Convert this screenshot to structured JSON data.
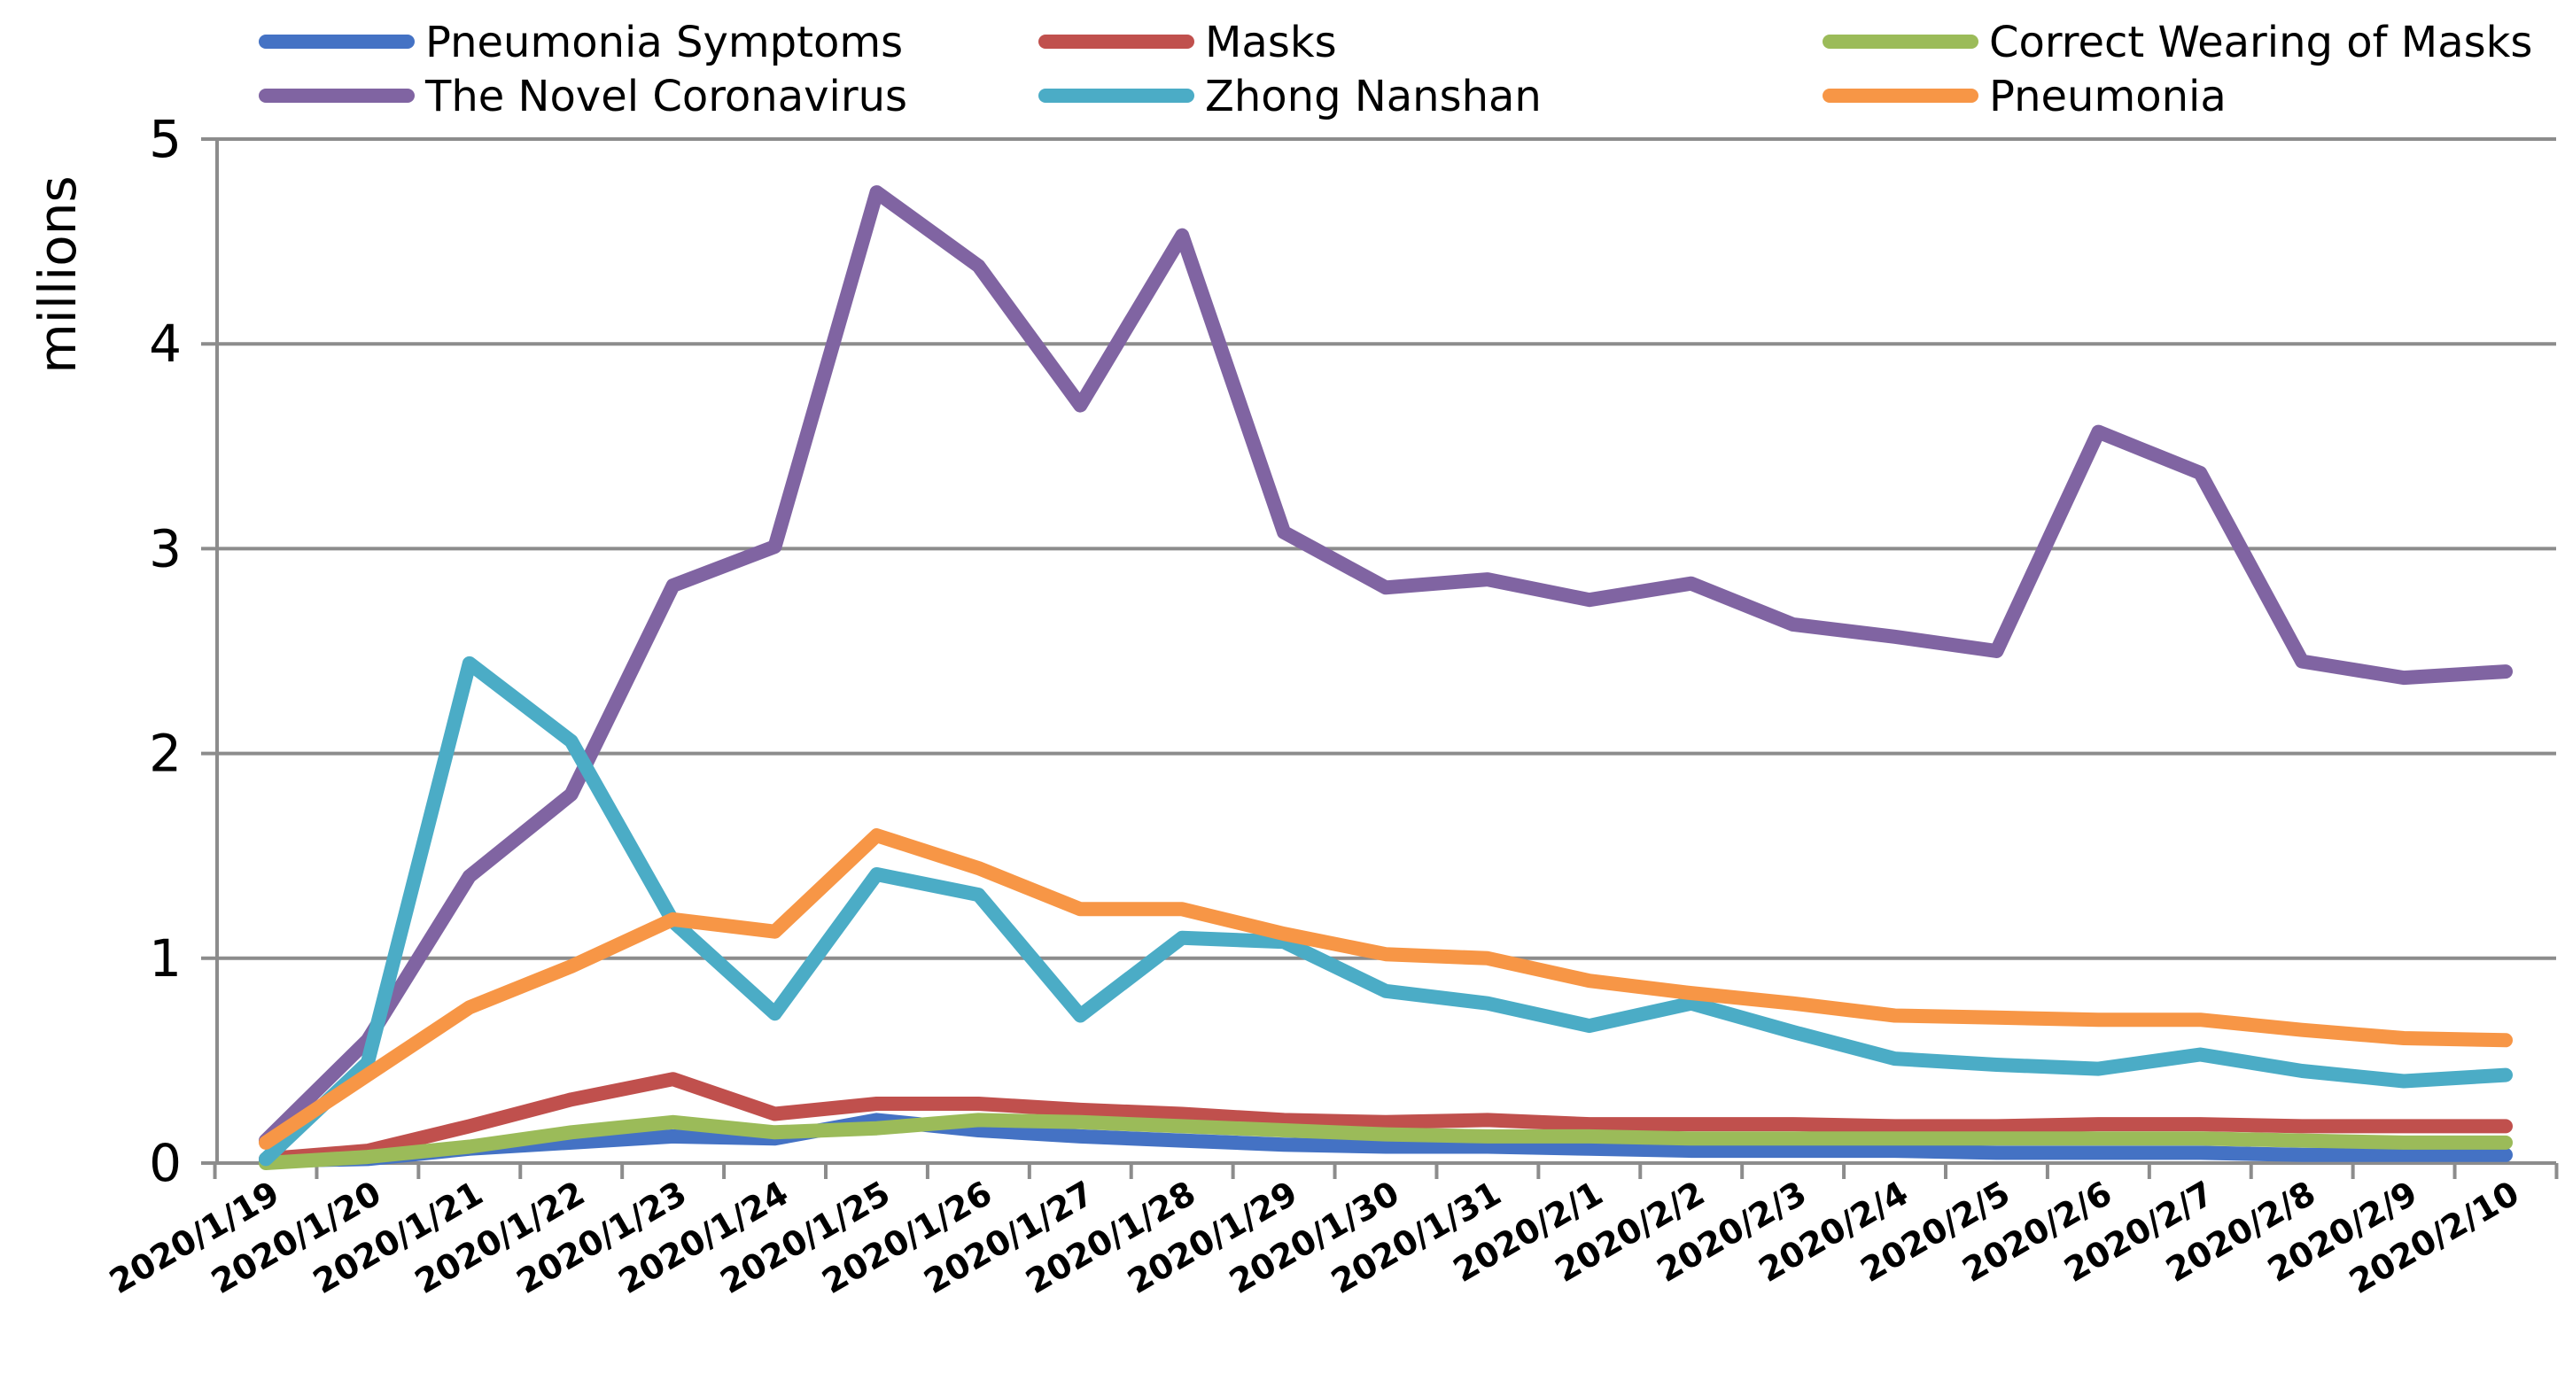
{
  "chart_data": {
    "type": "line",
    "title": "",
    "xlabel": "",
    "ylabel": "millions",
    "ylim": [
      0,
      5
    ],
    "yticks": [
      0,
      1,
      2,
      3,
      4,
      5
    ],
    "grid": true,
    "legend_position": "top",
    "categories": [
      "2020/1/19",
      "2020/1/20",
      "2020/1/21",
      "2020/1/22",
      "2020/1/23",
      "2020/1/24",
      "2020/1/25",
      "2020/1/26",
      "2020/1/27",
      "2020/1/28",
      "2020/1/29",
      "2020/1/30",
      "2020/1/31",
      "2020/2/1",
      "2020/2/2",
      "2020/2/3",
      "2020/2/4",
      "2020/2/5",
      "2020/2/6",
      "2020/2/7",
      "2020/2/8",
      "2020/2/9",
      "2020/2/10"
    ],
    "series": [
      {
        "name": "Pneumonia Symptoms",
        "color": "#4472C4",
        "values": [
          0.01,
          0.02,
          0.07,
          0.1,
          0.13,
          0.12,
          0.21,
          0.16,
          0.13,
          0.11,
          0.09,
          0.08,
          0.08,
          0.07,
          0.06,
          0.06,
          0.06,
          0.05,
          0.05,
          0.05,
          0.04,
          0.04,
          0.04
        ]
      },
      {
        "name": "Masks",
        "color": "#C0504D",
        "values": [
          0.02,
          0.06,
          0.18,
          0.31,
          0.41,
          0.24,
          0.29,
          0.29,
          0.26,
          0.24,
          0.21,
          0.2,
          0.21,
          0.19,
          0.19,
          0.19,
          0.18,
          0.18,
          0.19,
          0.19,
          0.18,
          0.18,
          0.18
        ]
      },
      {
        "name": "Correct Wearing of Masks",
        "color": "#9BBB59",
        "values": [
          0.0,
          0.03,
          0.08,
          0.15,
          0.2,
          0.15,
          0.17,
          0.21,
          0.2,
          0.18,
          0.16,
          0.14,
          0.13,
          0.13,
          0.12,
          0.12,
          0.12,
          0.12,
          0.12,
          0.12,
          0.11,
          0.1,
          0.1
        ]
      },
      {
        "name": "The Novel Coronavirus",
        "color": "#8064A2",
        "values": [
          0.11,
          0.6,
          1.4,
          1.8,
          2.82,
          3.01,
          4.74,
          4.38,
          3.7,
          4.53,
          3.08,
          2.81,
          2.85,
          2.75,
          2.83,
          2.63,
          2.57,
          2.5,
          3.57,
          3.37,
          2.45,
          2.37,
          2.4
        ]
      },
      {
        "name": "Zhong Nanshan",
        "color": "#4BACC6",
        "values": [
          0.02,
          0.49,
          2.44,
          2.06,
          1.18,
          0.73,
          1.41,
          1.31,
          0.72,
          1.1,
          1.08,
          0.84,
          0.78,
          0.67,
          0.78,
          0.64,
          0.51,
          0.48,
          0.46,
          0.53,
          0.45,
          0.4,
          0.43
        ]
      },
      {
        "name": "Pneumonia",
        "color": "#F79646",
        "values": [
          0.1,
          0.43,
          0.76,
          0.96,
          1.19,
          1.13,
          1.6,
          1.44,
          1.24,
          1.24,
          1.12,
          1.02,
          1.0,
          0.89,
          0.83,
          0.78,
          0.72,
          0.71,
          0.7,
          0.7,
          0.65,
          0.61,
          0.6
        ]
      }
    ]
  }
}
